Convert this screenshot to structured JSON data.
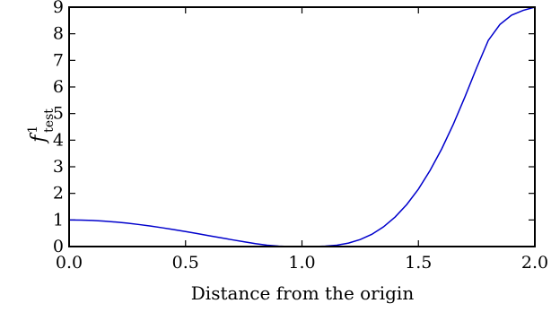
{
  "chart_data": {
    "type": "line",
    "xlabel": "Distance from the origin",
    "ylabel": {
      "main": "f",
      "sup": "1",
      "sub": "test"
    },
    "xlim": [
      0.0,
      2.0
    ],
    "ylim": [
      0,
      9
    ],
    "x_ticks": [
      "0.0",
      "0.5",
      "1.0",
      "1.5",
      "2.0"
    ],
    "y_ticks": [
      "0",
      "1",
      "2",
      "3",
      "4",
      "5",
      "6",
      "7",
      "8",
      "9"
    ],
    "grid": false,
    "series": [
      {
        "color": "#0000cc",
        "x": [
          0.0,
          0.05,
          0.1,
          0.15,
          0.2,
          0.25,
          0.3,
          0.35,
          0.4,
          0.45,
          0.5,
          0.55,
          0.6,
          0.65,
          0.7,
          0.75,
          0.8,
          0.85,
          0.9,
          0.95,
          1.0,
          1.05,
          1.1,
          1.15,
          1.2,
          1.25,
          1.3,
          1.35,
          1.4,
          1.45,
          1.5,
          1.55,
          1.6,
          1.65,
          1.7,
          1.75,
          1.8,
          1.85,
          1.9,
          1.95,
          2.0
        ],
        "y": [
          1.0,
          0.995,
          0.98,
          0.956,
          0.922,
          0.879,
          0.828,
          0.77,
          0.706,
          0.637,
          0.563,
          0.487,
          0.41,
          0.332,
          0.255,
          0.18,
          0.11,
          0.052,
          0.016,
          0.002,
          0.0,
          0.002,
          0.016,
          0.052,
          0.13,
          0.264,
          0.46,
          0.74,
          1.11,
          1.58,
          2.16,
          2.86,
          3.67,
          4.6,
          5.63,
          6.72,
          7.75,
          8.35,
          8.7,
          8.88,
          9.0
        ]
      }
    ]
  }
}
